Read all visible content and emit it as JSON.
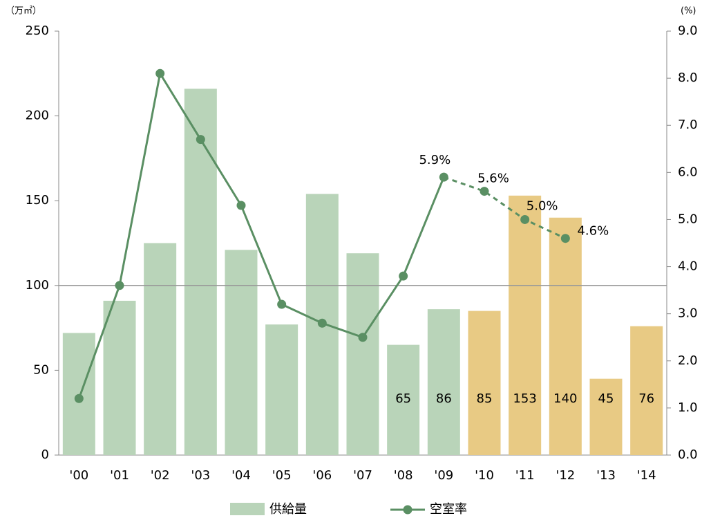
{
  "chart_data": {
    "type": "bar_line",
    "y_unit": "（万㎡）",
    "y2_unit": "(%)",
    "categories": [
      "'00",
      "'01",
      "'02",
      "'03",
      "'04",
      "'05",
      "'06",
      "'07",
      "'08",
      "'09",
      "'10",
      "'11",
      "'12",
      "'13",
      "'14"
    ],
    "series": [
      {
        "name": "供給量",
        "type": "bar",
        "values": [
          72,
          91,
          125,
          216,
          121,
          77,
          154,
          119,
          65,
          86,
          85,
          153,
          140,
          45,
          76
        ],
        "colors": [
          "#b9d4b9",
          "#b9d4b9",
          "#b9d4b9",
          "#b9d4b9",
          "#b9d4b9",
          "#b9d4b9",
          "#b9d4b9",
          "#b9d4b9",
          "#b9d4b9",
          "#b9d4b9",
          "#e8ca84",
          "#e8ca84",
          "#e8ca84",
          "#e8ca84",
          "#e8ca84"
        ],
        "labels_shown": [
          false,
          false,
          false,
          false,
          false,
          false,
          false,
          false,
          true,
          true,
          true,
          true,
          true,
          true,
          true
        ]
      },
      {
        "name": "空室率",
        "type": "line",
        "axis": "y2",
        "color": "#5a8f63",
        "dash_from_index": 9,
        "values": [
          1.2,
          3.6,
          8.1,
          6.7,
          5.3,
          3.2,
          2.8,
          2.5,
          3.8,
          5.9,
          5.6,
          5.0,
          4.6,
          null,
          null
        ],
        "value_labels": [
          null,
          null,
          null,
          null,
          null,
          null,
          null,
          null,
          null,
          "5.9%",
          "5.6%",
          "5.0%",
          "4.6%",
          null,
          null
        ]
      }
    ],
    "ylim": [
      0,
      250
    ],
    "yticks": [
      0,
      50,
      100,
      150,
      200,
      250
    ],
    "y2lim": [
      0,
      9
    ],
    "y2ticks": [
      {
        "value": 0,
        "label": "0.0"
      },
      {
        "value": 1,
        "label": "1.0"
      },
      {
        "value": 2,
        "label": "2.0"
      },
      {
        "value": 3,
        "label": "3.0"
      },
      {
        "value": 4,
        "label": "4.0"
      },
      {
        "value": 5,
        "label": "5.0"
      },
      {
        "value": 6,
        "label": "6.0"
      },
      {
        "value": 7,
        "label": "7.0"
      },
      {
        "value": 8,
        "label": "8.0"
      },
      {
        "value": 9,
        "label": "9.0"
      }
    ],
    "reference_line": 100,
    "legend": "bottom"
  }
}
